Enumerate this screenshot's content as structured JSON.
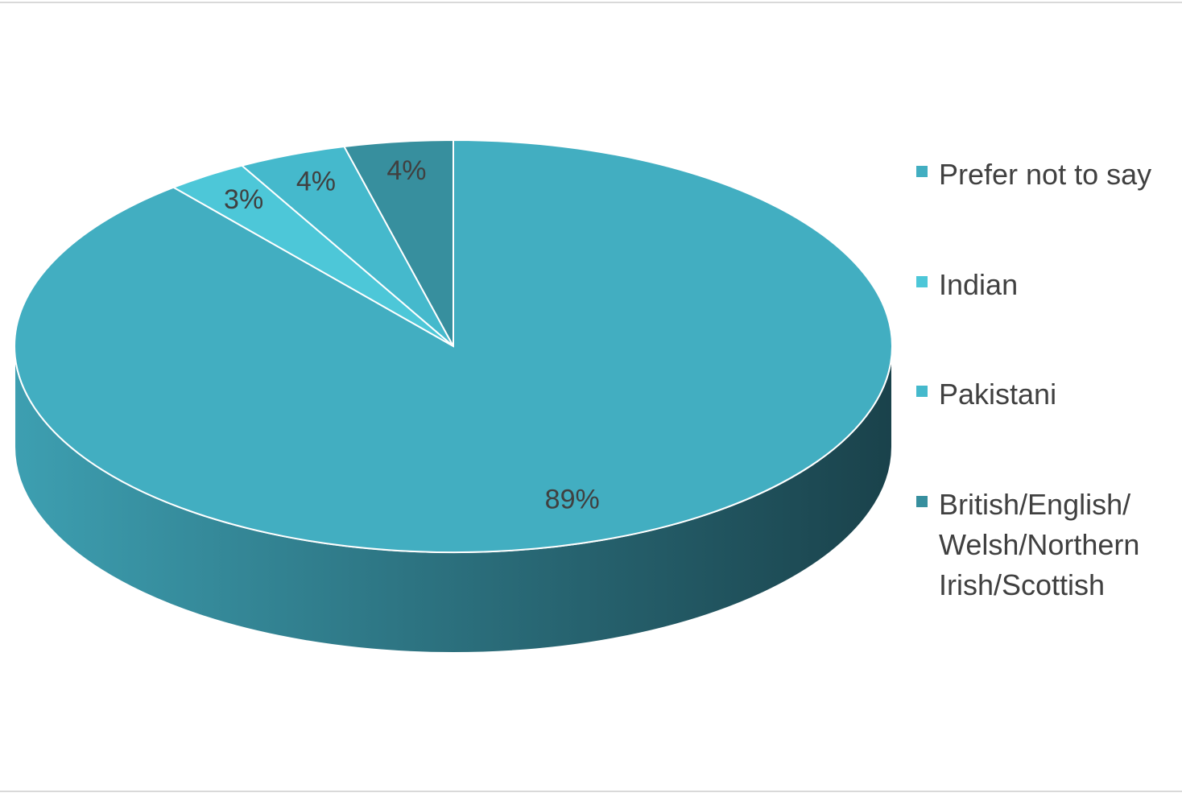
{
  "chart_data": {
    "type": "pie",
    "categories": [
      "Prefer not to say",
      "Indian",
      "Pakistani",
      "British/English/Welsh/Northern Irish/Scottish"
    ],
    "values": [
      89,
      3,
      4,
      4
    ],
    "value_labels": [
      "89%",
      "3%",
      "4%",
      "4%"
    ],
    "colors": [
      "#42aec1",
      "#4dc7d8",
      "#45b9cc",
      "#378f9e"
    ]
  }
}
